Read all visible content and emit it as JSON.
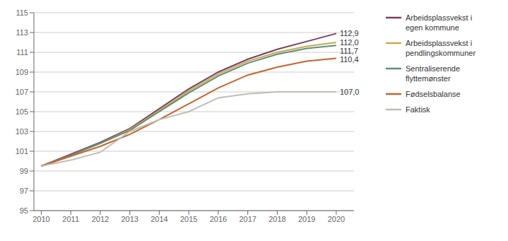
{
  "chart_data": {
    "type": "line",
    "x": [
      2010,
      2011,
      2012,
      2013,
      2014,
      2015,
      2016,
      2017,
      2018,
      2019,
      2020
    ],
    "series": [
      {
        "name": "Arbeidsplassvekst i\negen kommune",
        "color": "#7b3f5e",
        "values": [
          99.5,
          100.7,
          101.9,
          103.3,
          105.3,
          107.3,
          109.0,
          110.3,
          111.3,
          112.1,
          112.9
        ],
        "value_labels": [
          null,
          null,
          null,
          null,
          null,
          null,
          null,
          null,
          null,
          null,
          "112,9"
        ]
      },
      {
        "name": "Arbeidsplassvekst i\npendlingskommuner",
        "color": "#c9a84c",
        "values": [
          99.5,
          100.6,
          101.8,
          103.2,
          105.1,
          107.1,
          108.8,
          110.1,
          111.0,
          111.6,
          112.0
        ],
        "value_labels": [
          null,
          null,
          null,
          null,
          null,
          null,
          null,
          null,
          null,
          null,
          "112,0"
        ]
      },
      {
        "name": "Sentraliserende\nflyttemønster",
        "color": "#5a9175",
        "values": [
          99.5,
          100.6,
          101.8,
          103.1,
          105.0,
          106.9,
          108.6,
          109.9,
          110.8,
          111.4,
          111.7
        ],
        "value_labels": [
          null,
          null,
          null,
          null,
          null,
          null,
          null,
          null,
          null,
          null,
          "111,7"
        ]
      },
      {
        "name": "Fødselsbalanse",
        "color": "#c8622a",
        "values": [
          99.5,
          100.5,
          101.5,
          102.7,
          104.2,
          105.8,
          107.4,
          108.7,
          109.5,
          110.1,
          110.4
        ],
        "value_labels": [
          null,
          null,
          null,
          null,
          null,
          null,
          null,
          null,
          null,
          null,
          "110,4"
        ]
      },
      {
        "name": "Faktisk",
        "color": "#c0bdb5",
        "values": [
          99.5,
          100.1,
          100.9,
          103.0,
          104.2,
          105.0,
          106.4,
          106.8,
          107.0,
          107.0,
          107.0
        ],
        "value_labels": [
          null,
          null,
          null,
          null,
          null,
          null,
          null,
          null,
          null,
          null,
          "107,0"
        ]
      }
    ],
    "xlim": [
      2009.75,
      2020.6
    ],
    "xticks": [
      2010,
      2011,
      2012,
      2013,
      2014,
      2015,
      2016,
      2017,
      2018,
      2019,
      2020
    ],
    "ylim": [
      95,
      115
    ],
    "yticks": [
      95,
      97,
      99,
      101,
      103,
      105,
      107,
      109,
      111,
      113,
      115
    ],
    "grid": true,
    "legend": "right"
  }
}
